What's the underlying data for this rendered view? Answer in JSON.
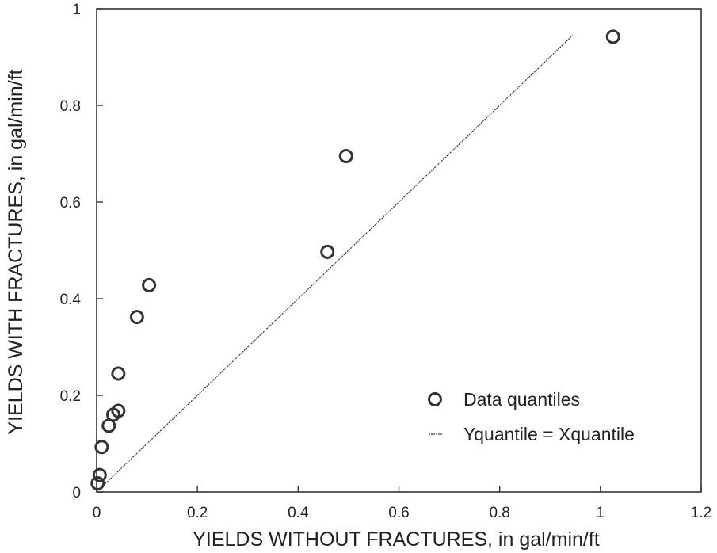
{
  "chart_data": {
    "type": "scatter",
    "xlabel": "YIELDS WITHOUT FRACTURES, in gal/min/ft",
    "ylabel": "YIELDS WITH FRACTURES, in gal/min/ft",
    "xlim": [
      0,
      1.2
    ],
    "ylim": [
      0,
      1
    ],
    "x_ticks": [
      0,
      0.2,
      0.4,
      0.6,
      0.8,
      1,
      1.2
    ],
    "x_tick_labels": [
      "0",
      "0.2",
      "0.4",
      "0.6",
      "0.8",
      "1",
      "1.2"
    ],
    "y_ticks": [
      0,
      0.2,
      0.4,
      0.6,
      0.8,
      1
    ],
    "y_tick_labels": [
      "0",
      "0.2",
      "0.4",
      "0.6",
      "0.8",
      "1"
    ],
    "grid": false,
    "legend_position": "bottom-right",
    "series": [
      {
        "name": "Data quantiles",
        "marker": "open-circle",
        "color": "#333333",
        "points": [
          {
            "x": 0.002,
            "y": 0.018
          },
          {
            "x": 0.006,
            "y": 0.035
          },
          {
            "x": 0.01,
            "y": 0.093
          },
          {
            "x": 0.024,
            "y": 0.137
          },
          {
            "x": 0.033,
            "y": 0.16
          },
          {
            "x": 0.043,
            "y": 0.168
          },
          {
            "x": 0.043,
            "y": 0.245
          },
          {
            "x": 0.08,
            "y": 0.362
          },
          {
            "x": 0.104,
            "y": 0.428
          },
          {
            "x": 0.458,
            "y": 0.497
          },
          {
            "x": 0.495,
            "y": 0.695
          },
          {
            "x": 1.025,
            "y": 0.942
          }
        ]
      },
      {
        "name": "Yquantile = Xquantile",
        "type": "line",
        "color": "#444444",
        "points": [
          {
            "x": 0,
            "y": 0
          },
          {
            "x": 0.945,
            "y": 0.945
          }
        ]
      }
    ]
  }
}
